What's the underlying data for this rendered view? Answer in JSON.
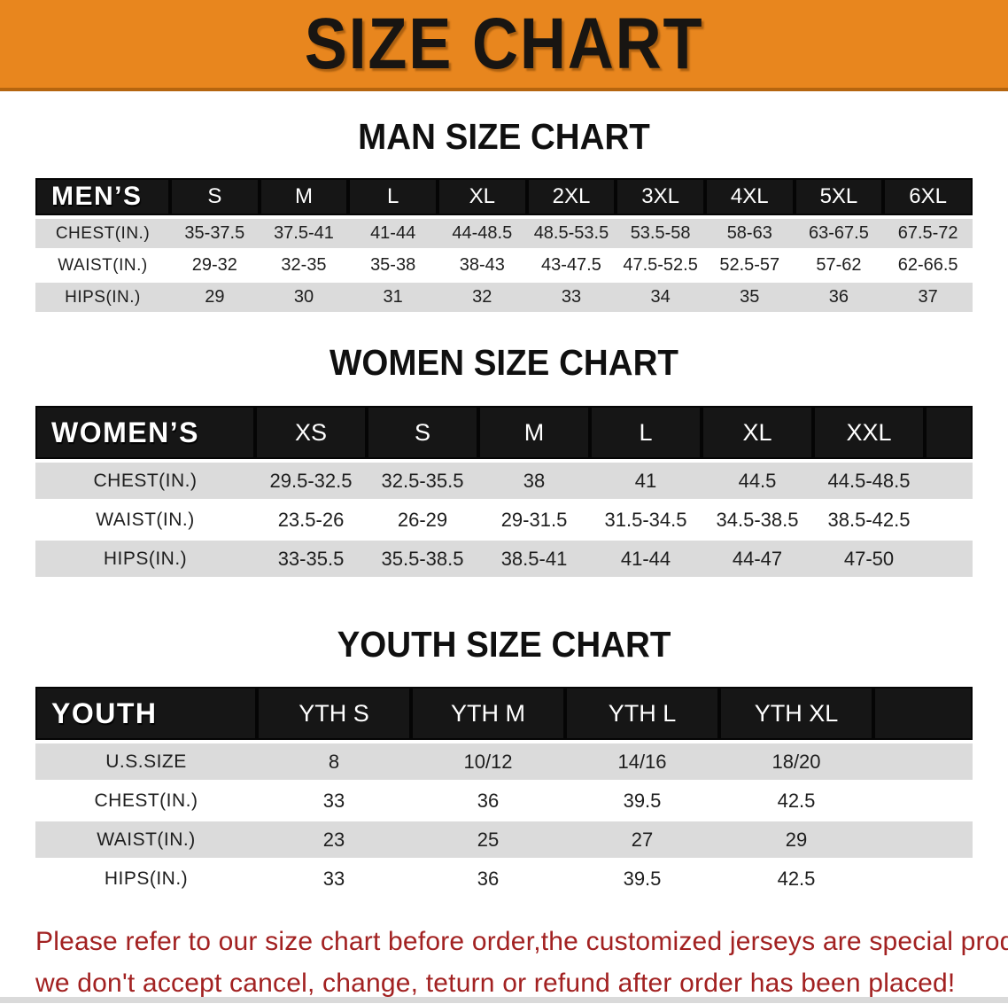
{
  "banner": {
    "title": "SIZE CHART"
  },
  "colors": {
    "banner_bg": "#E8861E",
    "banner_edge": "#B5650F",
    "table_header_bg": "#161616",
    "row_stripe": "#DBDBDB",
    "note_red": "#A22121"
  },
  "tables": {
    "men": {
      "heading": "MAN SIZE CHART",
      "corner_label": "MEN’S",
      "columns": [
        "S",
        "M",
        "L",
        "XL",
        "2XL",
        "3XL",
        "4XL",
        "5XL",
        "6XL"
      ],
      "rows": [
        {
          "label": "CHEST(IN.)",
          "values": [
            "35-37.5",
            "37.5-41",
            "41-44",
            "44-48.5",
            "48.5-53.5",
            "53.5-58",
            "58-63",
            "63-67.5",
            "67.5-72"
          ]
        },
        {
          "label": "WAIST(IN.)",
          "values": [
            "29-32",
            "32-35",
            "35-38",
            "38-43",
            "43-47.5",
            "47.5-52.5",
            "52.5-57",
            "57-62",
            "62-66.5"
          ]
        },
        {
          "label": "HIPS(IN.)",
          "values": [
            "29",
            "30",
            "31",
            "32",
            "33",
            "34",
            "35",
            "36",
            "37"
          ]
        }
      ]
    },
    "women": {
      "heading": "WOMEN SIZE CHART",
      "corner_label": "WOMEN’S",
      "columns": [
        "XS",
        "S",
        "M",
        "L",
        "XL",
        "XXL"
      ],
      "rows": [
        {
          "label": "CHEST(IN.)",
          "values": [
            "29.5-32.5",
            "32.5-35.5",
            "38",
            "41",
            "44.5",
            "44.5-48.5"
          ]
        },
        {
          "label": "WAIST(IN.)",
          "values": [
            "23.5-26",
            "26-29",
            "29-31.5",
            "31.5-34.5",
            "34.5-38.5",
            "38.5-42.5"
          ]
        },
        {
          "label": "HIPS(IN.)",
          "values": [
            "33-35.5",
            "35.5-38.5",
            "38.5-41",
            "41-44",
            "44-47",
            "47-50"
          ]
        }
      ]
    },
    "youth": {
      "heading": "YOUTH SIZE CHART",
      "corner_label": "YOUTH",
      "columns": [
        "YTH S",
        "YTH M",
        "YTH L",
        "YTH XL"
      ],
      "rows": [
        {
          "label": "U.S.SIZE",
          "values": [
            "8",
            "10/12",
            "14/16",
            "18/20"
          ]
        },
        {
          "label": "CHEST(IN.)",
          "values": [
            "33",
            "36",
            "39.5",
            "42.5"
          ]
        },
        {
          "label": "WAIST(IN.)",
          "values": [
            "23",
            "25",
            "27",
            "29"
          ]
        },
        {
          "label": "HIPS(IN.)",
          "values": [
            "33",
            "36",
            "39.5",
            "42.5"
          ]
        }
      ]
    }
  },
  "note": {
    "line1": "Please refer to our size chart before order,the customized jerseys are special products,",
    "line2": "we don't accept cancel, change, teturn or refund after order has been placed!"
  }
}
